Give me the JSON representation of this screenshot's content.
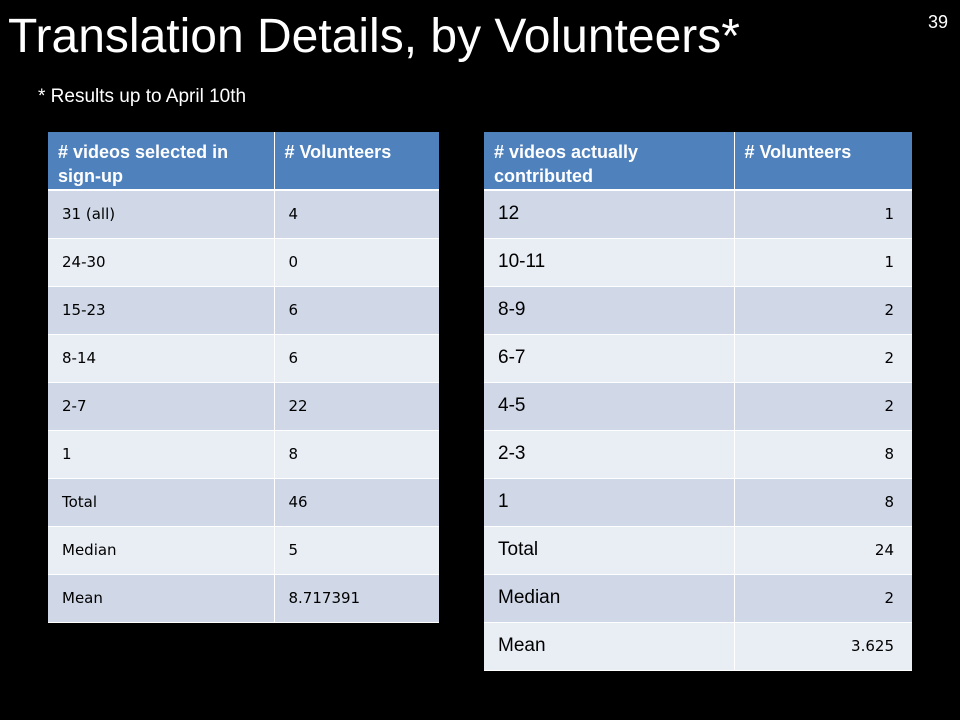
{
  "slide": {
    "title": "Translation Details, by Volunteers*",
    "page_number": "39",
    "footnote": "* Results up to April 10th"
  },
  "left_table": {
    "headers": [
      "# videos selected in sign-up",
      "# Volunteers"
    ],
    "rows": [
      [
        "31 (all)",
        "4"
      ],
      [
        "24-30",
        "0"
      ],
      [
        "15-23",
        "6"
      ],
      [
        "8-14",
        "6"
      ],
      [
        "2-7",
        "22"
      ],
      [
        "1",
        "8"
      ],
      [
        "Total",
        "46"
      ],
      [
        "Median",
        "5"
      ],
      [
        "Mean",
        "8.717391"
      ]
    ]
  },
  "right_table": {
    "headers": [
      "# videos actually contributed",
      "# Volunteers"
    ],
    "rows": [
      [
        "12",
        "1"
      ],
      [
        "10-11",
        "1"
      ],
      [
        "8-9",
        "2"
      ],
      [
        "6-7",
        "2"
      ],
      [
        "4-5",
        "2"
      ],
      [
        "2-3",
        "8"
      ],
      [
        "1",
        "8"
      ],
      [
        "Total",
        "24"
      ],
      [
        "Median",
        "2"
      ],
      [
        "Mean",
        "3.625"
      ]
    ]
  },
  "colors": {
    "background": "#000000",
    "header_blue": "#4f81bd",
    "row_dark": "#d0d8e8",
    "row_light": "#e9edf4"
  }
}
